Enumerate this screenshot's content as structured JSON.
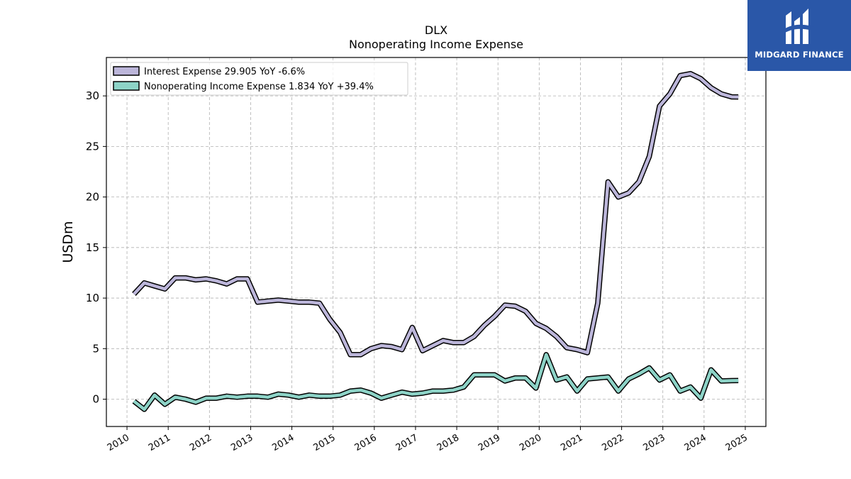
{
  "brand": {
    "name": "MIDGARD FINANCE",
    "logo_icon": "midgard-logo-icon",
    "color": "#2a57a8"
  },
  "chart_data": {
    "type": "line",
    "title": "DLX",
    "subtitle": "Nonoperating Income Expense",
    "xlabel": "",
    "ylabel": "USDm",
    "xlim": [
      2009.5,
      2025.5
    ],
    "ylim": [
      -2.7,
      33.8
    ],
    "x_ticks": [
      2010,
      2011,
      2012,
      2013,
      2014,
      2015,
      2016,
      2017,
      2018,
      2019,
      2020,
      2021,
      2022,
      2023,
      2024,
      2025
    ],
    "x_tick_labels": [
      "2010",
      "2011",
      "2012",
      "2013",
      "2014",
      "2015",
      "2016",
      "2017",
      "2018",
      "2019",
      "2020",
      "2021",
      "2022",
      "2023",
      "2024",
      "2025"
    ],
    "y_ticks": [
      0,
      5,
      10,
      15,
      20,
      25,
      30
    ],
    "y_tick_labels": [
      "0",
      "5",
      "10",
      "15",
      "20",
      "25",
      "30"
    ],
    "grid": true,
    "legend_position": "top-left",
    "series": [
      {
        "name": "Interest Expense",
        "legend_label": "Interest Expense  29.905 YoY -6.6%",
        "color": "#bcb6da",
        "x": [
          2010.17,
          2010.42,
          2010.67,
          2010.92,
          2011.17,
          2011.42,
          2011.67,
          2011.92,
          2012.17,
          2012.42,
          2012.67,
          2012.92,
          2013.17,
          2013.42,
          2013.67,
          2013.92,
          2014.17,
          2014.42,
          2014.67,
          2014.92,
          2015.17,
          2015.42,
          2015.67,
          2015.92,
          2016.17,
          2016.42,
          2016.67,
          2016.92,
          2017.17,
          2017.42,
          2017.67,
          2017.92,
          2018.17,
          2018.42,
          2018.67,
          2018.92,
          2019.17,
          2019.42,
          2019.67,
          2019.92,
          2020.17,
          2020.42,
          2020.67,
          2020.92,
          2021.17,
          2021.42,
          2021.67,
          2021.92,
          2022.17,
          2022.42,
          2022.67,
          2022.92,
          2023.17,
          2023.42,
          2023.67,
          2023.92,
          2024.17,
          2024.42,
          2024.67,
          2024.83
        ],
        "y": [
          10.4,
          11.5,
          11.2,
          10.9,
          12.0,
          12.0,
          11.8,
          11.9,
          11.7,
          11.4,
          11.9,
          11.9,
          9.6,
          9.7,
          9.8,
          9.7,
          9.6,
          9.6,
          9.5,
          7.9,
          6.6,
          4.4,
          4.4,
          5.0,
          5.3,
          5.2,
          4.9,
          7.1,
          4.8,
          5.3,
          5.8,
          5.6,
          5.6,
          6.2,
          7.3,
          8.2,
          9.3,
          9.2,
          8.7,
          7.5,
          7.0,
          6.2,
          5.1,
          4.9,
          4.6,
          9.5,
          21.5,
          20.0,
          20.4,
          21.5,
          24.0,
          29.0,
          30.2,
          32.0,
          32.2,
          31.7,
          30.8,
          30.2,
          29.905,
          29.9
        ]
      },
      {
        "name": "Nonoperating Income Expense",
        "legend_label": "Nonoperating Income Expense  1.834 YoY +39.4%",
        "color": "#8dd3c7",
        "x": [
          2010.17,
          2010.42,
          2010.67,
          2010.92,
          2011.17,
          2011.42,
          2011.67,
          2011.92,
          2012.17,
          2012.42,
          2012.67,
          2012.92,
          2013.17,
          2013.42,
          2013.67,
          2013.92,
          2014.17,
          2014.42,
          2014.67,
          2014.92,
          2015.17,
          2015.42,
          2015.67,
          2015.92,
          2016.17,
          2016.42,
          2016.67,
          2016.92,
          2017.17,
          2017.42,
          2017.67,
          2017.92,
          2018.17,
          2018.42,
          2018.67,
          2018.92,
          2019.17,
          2019.42,
          2019.67,
          2019.92,
          2020.17,
          2020.42,
          2020.67,
          2020.92,
          2021.17,
          2021.42,
          2021.67,
          2021.92,
          2022.17,
          2022.42,
          2022.67,
          2022.92,
          2023.17,
          2023.42,
          2023.67,
          2023.92,
          2024.17,
          2024.42,
          2024.67,
          2024.83
        ],
        "y": [
          -0.2,
          -1.0,
          0.4,
          -0.5,
          0.2,
          0.0,
          -0.3,
          0.1,
          0.1,
          0.3,
          0.2,
          0.3,
          0.3,
          0.2,
          0.5,
          0.4,
          0.2,
          0.4,
          0.3,
          0.3,
          0.4,
          0.8,
          0.9,
          0.6,
          0.1,
          0.4,
          0.7,
          0.5,
          0.6,
          0.8,
          0.8,
          0.9,
          1.2,
          2.4,
          2.4,
          2.4,
          1.8,
          2.1,
          2.1,
          1.1,
          4.4,
          1.9,
          2.2,
          0.8,
          2.0,
          2.1,
          2.2,
          0.8,
          2.0,
          2.5,
          3.1,
          1.9,
          2.4,
          0.8,
          1.2,
          0.1,
          2.9,
          1.8,
          1.834,
          1.85
        ]
      }
    ]
  }
}
